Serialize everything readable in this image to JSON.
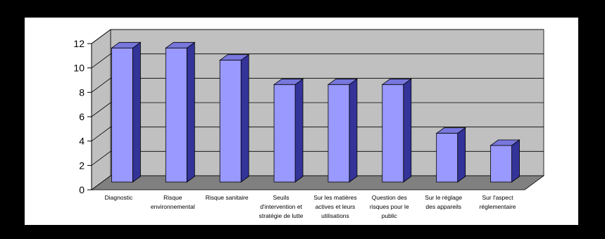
{
  "chart_data": {
    "type": "bar",
    "title": "",
    "xlabel": "",
    "ylabel": "",
    "ylim": [
      0,
      12
    ],
    "yticks": [
      0,
      2,
      4,
      6,
      8,
      10,
      12
    ],
    "grid": true,
    "legend": "none",
    "categories": [
      "Diagnostic",
      "Risque\nenvironnemental",
      "Risque sanitaire",
      "Seuils\nd'intervention et\nstratégie de lutte",
      "Sur les matières\nactives et leurs\nutilisations",
      "Question des\nrisques pour le\npublic",
      "Sur le réglage\ndes appareils",
      "Sur l'aspect\nréglementaire"
    ],
    "values": [
      11,
      11,
      10,
      8,
      8,
      8,
      4,
      3
    ]
  },
  "colors": {
    "background": "#000000",
    "panel": "#ffffff",
    "wall": "#c0c0c0",
    "floor": "#808080",
    "bar_front": "#9999ff",
    "bar_side": "#333399",
    "bar_top": "#7777dd",
    "gridline": "#000000"
  }
}
